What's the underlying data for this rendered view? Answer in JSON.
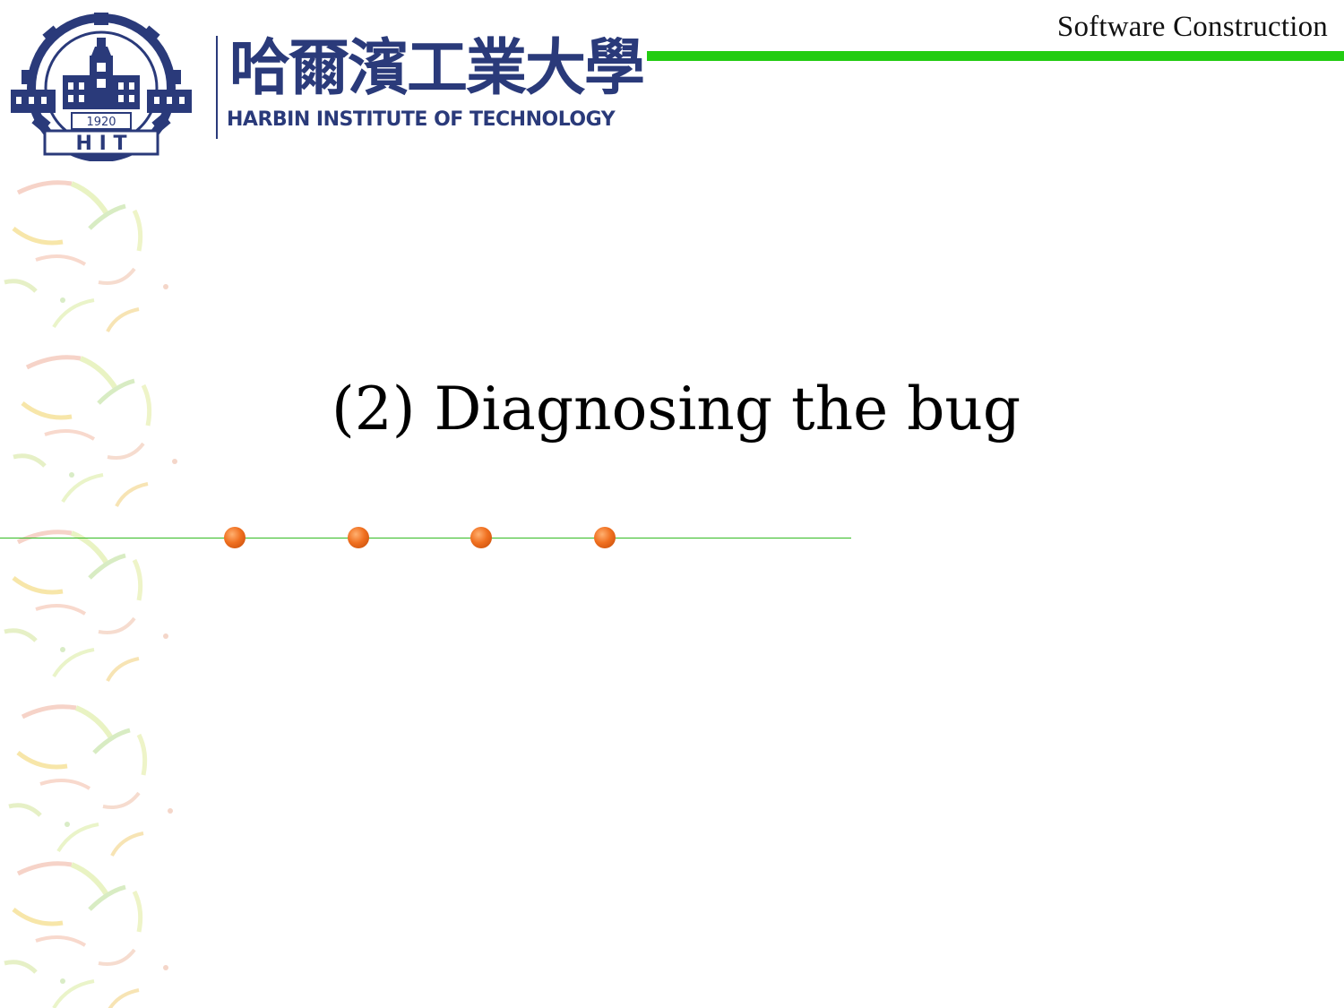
{
  "header": {
    "course_name": "Software Construction",
    "accent_color": "#22cc11"
  },
  "logo": {
    "emblem_icon": "hit-gear-emblem-icon",
    "emblem_year": "1920",
    "emblem_letters": "H I T",
    "chinese_name": "哈爾濱工業大學",
    "english_name": "HARBIN INSTITUTE OF TECHNOLOGY",
    "brand_color": "#2a3a7a"
  },
  "slide": {
    "title": "(2) Diagnosing the bug",
    "bullet_dot_color": "#f07020"
  }
}
